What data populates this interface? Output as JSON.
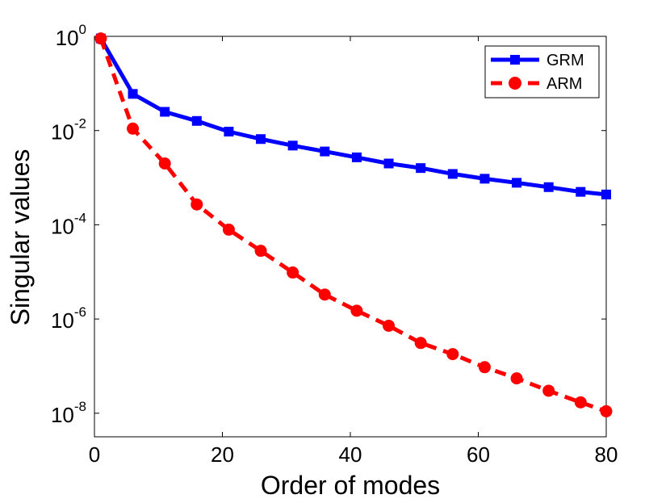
{
  "chart_data": {
    "type": "line",
    "title": "",
    "xlabel": "Order of modes",
    "ylabel": "Singular values",
    "yscale": "log",
    "xlim": [
      0,
      80
    ],
    "ylim_exp": [
      -8.5,
      0
    ],
    "x_ticks": [
      0,
      20,
      40,
      60,
      80
    ],
    "x_tick_labels": [
      "0",
      "20",
      "40",
      "60",
      "80"
    ],
    "y_ticks_exp": [
      0,
      -2,
      -4,
      -6,
      -8
    ],
    "y_tick_labels": [
      {
        "base": "10",
        "exp": "0"
      },
      {
        "base": "10",
        "exp": "-2"
      },
      {
        "base": "10",
        "exp": "-4"
      },
      {
        "base": "10",
        "exp": "-6"
      },
      {
        "base": "10",
        "exp": "-8"
      }
    ],
    "legend_position": "top-right",
    "x": [
      1,
      6,
      11,
      16,
      21,
      26,
      31,
      36,
      41,
      46,
      51,
      56,
      61,
      66,
      71,
      76,
      80
    ],
    "series": [
      {
        "name": "GRM",
        "color": "#0000ff",
        "line_style": "solid",
        "marker": "square",
        "values": [
          0.9,
          0.06,
          0.025,
          0.016,
          0.0095,
          0.0066,
          0.0048,
          0.0036,
          0.0027,
          0.002,
          0.0016,
          0.0012,
          0.00095,
          0.00078,
          0.00063,
          0.0005,
          0.00044
        ]
      },
      {
        "name": "ARM",
        "color": "#ff0000",
        "line_style": "dashed",
        "marker": "circle",
        "values": [
          0.9,
          0.011,
          0.002,
          0.00027,
          7.9e-05,
          2.8e-05,
          9.7e-06,
          3.3e-06,
          1.5e-06,
          7.2e-07,
          3.1e-07,
          1.8e-07,
          9.5e-08,
          5.5e-08,
          3e-08,
          1.7e-08,
          1.1e-08
        ]
      }
    ]
  }
}
